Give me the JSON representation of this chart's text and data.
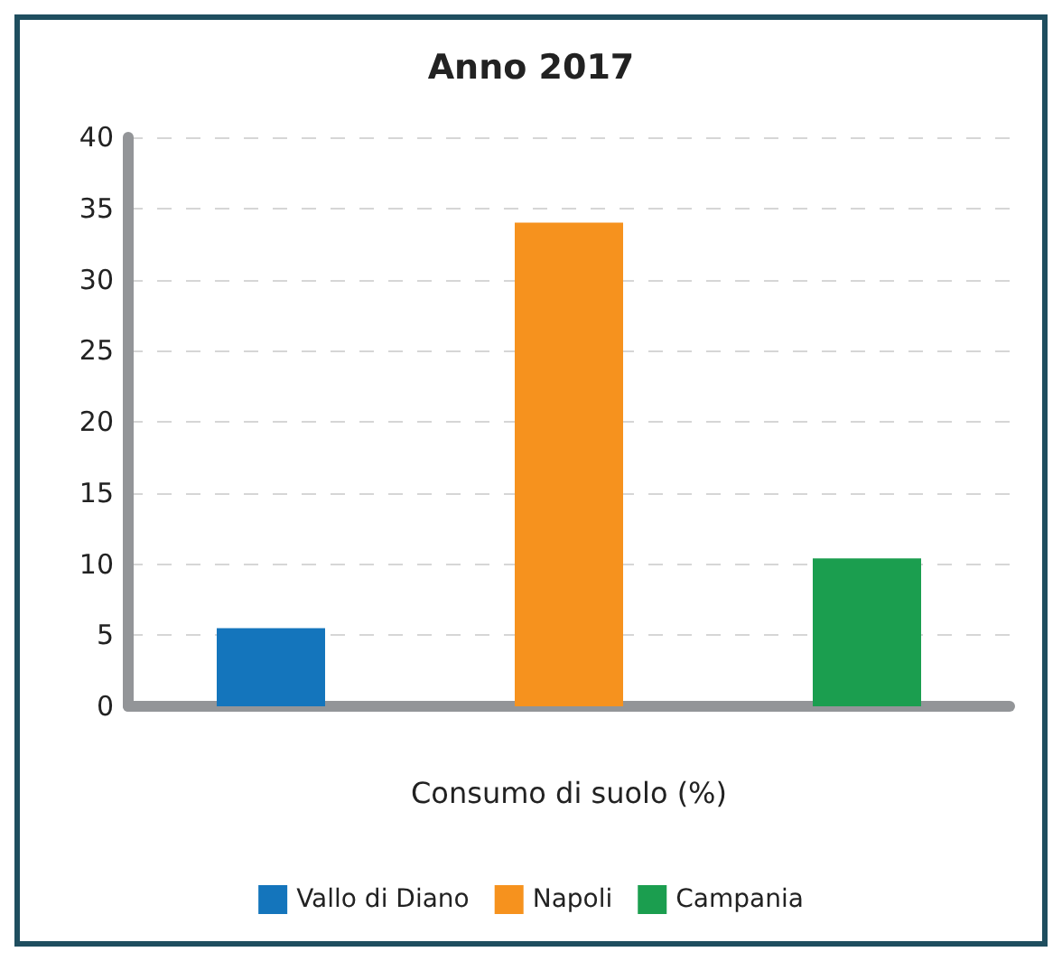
{
  "chart_data": {
    "type": "bar",
    "title": "Anno 2017",
    "xlabel": "Consumo di suolo (%)",
    "categories": [
      null
    ],
    "series": [
      {
        "name": "Vallo di Diano",
        "color": "#1475bc",
        "values": [
          5.5
        ]
      },
      {
        "name": "Napoli",
        "color": "#f6921e",
        "values": [
          34.0
        ]
      },
      {
        "name": "Campania",
        "color": "#1b9e4f",
        "values": [
          10.4
        ]
      }
    ],
    "ylim": [
      0,
      40
    ],
    "yticks": [
      0,
      5,
      10,
      15,
      20,
      25,
      30,
      35,
      40
    ],
    "grid": "y",
    "legend": "bottom"
  }
}
